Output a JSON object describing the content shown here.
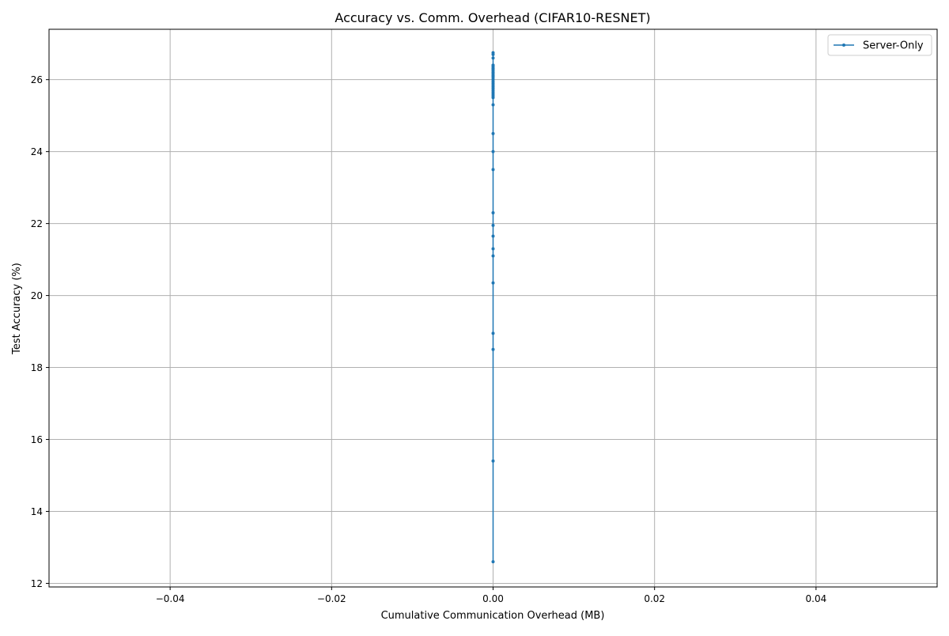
{
  "chart_data": {
    "type": "line",
    "title": "Accuracy vs. Comm. Overhead (CIFAR10-RESNET)",
    "xlabel": "Cumulative Communication Overhead (MB)",
    "ylabel": "Test Accuracy (%)",
    "xlim": [
      -0.055,
      0.055
    ],
    "ylim": [
      11.9,
      27.4
    ],
    "xticks": [
      -0.04,
      -0.02,
      0.0,
      0.02,
      0.04
    ],
    "xtick_labels": [
      "−0.04",
      "−0.02",
      "0.00",
      "0.02",
      "0.04"
    ],
    "yticks": [
      12,
      14,
      16,
      18,
      20,
      22,
      24,
      26
    ],
    "ytick_labels": [
      "12",
      "14",
      "16",
      "18",
      "20",
      "22",
      "24",
      "26"
    ],
    "grid": true,
    "legend_position": "top-right",
    "series": [
      {
        "name": "Server-Only",
        "color": "#1f77b4",
        "marker": "dot",
        "x": [
          0,
          0,
          0,
          0,
          0,
          0,
          0,
          0,
          0,
          0,
          0,
          0,
          0,
          0,
          0,
          0,
          0,
          0,
          0,
          0,
          0,
          0,
          0,
          0,
          0,
          0,
          0,
          0,
          0,
          0,
          0,
          0,
          0,
          0,
          0,
          0,
          0,
          0,
          0,
          0
        ],
        "y": [
          12.6,
          15.4,
          18.5,
          18.95,
          20.35,
          21.1,
          21.3,
          21.65,
          21.95,
          22.3,
          23.5,
          24.0,
          24.5,
          25.3,
          25.5,
          25.6,
          25.7,
          25.8,
          25.9,
          26.0,
          26.1,
          26.2,
          26.3,
          26.4,
          26.35,
          26.25,
          26.15,
          26.05,
          25.95,
          25.85,
          25.75,
          25.65,
          25.55,
          26.3,
          26.2,
          26.1,
          26.4,
          26.7,
          26.75,
          26.6
        ]
      }
    ]
  }
}
